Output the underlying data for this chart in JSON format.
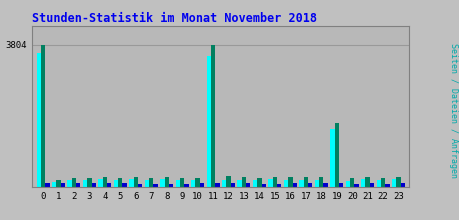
{
  "title": "Stunden-Statistik im Monat November 2018",
  "title_color": "#0000ee",
  "ylabel": "Seiten / Dateien / Anfragen",
  "ylabel_color": "#00aaaa",
  "background_color": "#c0c0c0",
  "plot_bg_color": "#b8b8b8",
  "grid_color": "#999999",
  "hours": [
    0,
    1,
    2,
    3,
    4,
    5,
    6,
    7,
    8,
    9,
    10,
    11,
    12,
    13,
    14,
    15,
    16,
    17,
    18,
    19,
    20,
    21,
    22,
    23
  ],
  "cyan_vals": [
    3600,
    130,
    200,
    195,
    215,
    195,
    210,
    185,
    210,
    175,
    195,
    3500,
    200,
    185,
    195,
    215,
    195,
    195,
    190,
    1550,
    160,
    205,
    185,
    220
  ],
  "green_vals": [
    3804,
    200,
    250,
    240,
    255,
    245,
    255,
    240,
    255,
    235,
    250,
    3804,
    290,
    255,
    250,
    260,
    260,
    265,
    270,
    1720,
    240,
    255,
    240,
    255
  ],
  "blue_vals": [
    100,
    100,
    110,
    95,
    100,
    100,
    90,
    85,
    90,
    85,
    95,
    110,
    100,
    95,
    90,
    90,
    95,
    95,
    100,
    115,
    85,
    100,
    90,
    100
  ],
  "color_cyan": "#00ffff",
  "color_green": "#008060",
  "color_blue": "#0000cc",
  "ylim_max": 4300,
  "ytick_val": 3804,
  "bar_width": 0.28
}
